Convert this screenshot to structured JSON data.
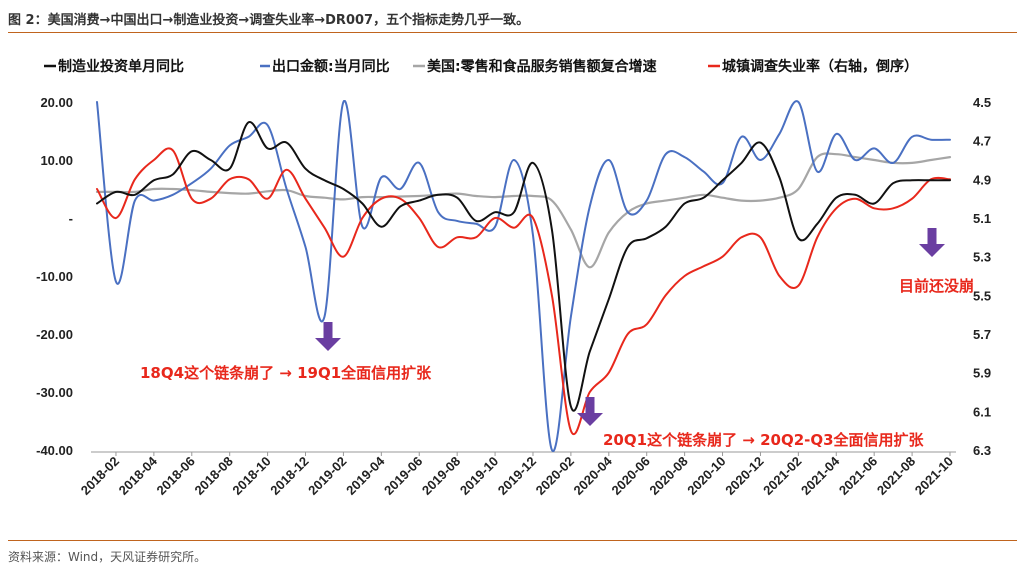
{
  "figure": {
    "title": "图 2：美国消费→中国出口→制造业投资→调查失业率→DR007，五个指标走势几乎一致。",
    "source": "资料来源：Wind，天风证券研究所。"
  },
  "colors": {
    "manufacturing": "#111111",
    "exports": "#4a70c2",
    "us_retail": "#a6a6a6",
    "unemployment": "#e8281c",
    "arrow": "#6a3ea1"
  },
  "chart_data": {
    "type": "line",
    "x": [
      "2018-01",
      "2018-02",
      "2018-03",
      "2018-04",
      "2018-05",
      "2018-06",
      "2018-07",
      "2018-08",
      "2018-09",
      "2018-10",
      "2018-11",
      "2018-12",
      "2019-01",
      "2019-02",
      "2019-03",
      "2019-04",
      "2019-05",
      "2019-06",
      "2019-07",
      "2019-08",
      "2019-09",
      "2019-10",
      "2019-11",
      "2019-12",
      "2020-01",
      "2020-02",
      "2020-03",
      "2020-04",
      "2020-05",
      "2020-06",
      "2020-07",
      "2020-08",
      "2020-09",
      "2020-10",
      "2020-11",
      "2020-12",
      "2021-01",
      "2021-02",
      "2021-03",
      "2021-04",
      "2021-05",
      "2021-06",
      "2021-07",
      "2021-08",
      "2021-09",
      "2021-10"
    ],
    "x_tick_labels": [
      "2018-02",
      "2018-04",
      "2018-06",
      "2018-08",
      "2018-10",
      "2018-12",
      "2019-02",
      "2019-04",
      "2019-06",
      "2019-08",
      "2019-10",
      "2019-12",
      "2020-02",
      "2020-04",
      "2020-06",
      "2020-08",
      "2020-10",
      "2020-12",
      "2021-02",
      "2021-04",
      "2021-06",
      "2021-08",
      "2021-10"
    ],
    "y_left": {
      "ticks": [
        20,
        10,
        0,
        -10,
        -20,
        -30,
        -40
      ],
      "tick_labels": [
        "20.00",
        "10.00",
        "-",
        "-10.00",
        "-20.00",
        "-30.00",
        "-40.00"
      ],
      "range": [
        -40,
        20
      ]
    },
    "y_right": {
      "ticks": [
        4.5,
        4.7,
        4.9,
        5.1,
        5.3,
        5.5,
        5.7,
        5.9,
        6.1,
        6.3
      ],
      "tick_labels": [
        "4.5",
        "4.7",
        "4.9",
        "5.1",
        "5.3",
        "5.5",
        "5.7",
        "5.9",
        "6.1",
        "6.3"
      ],
      "range": [
        4.5,
        6.3
      ],
      "inverted": true
    },
    "series": [
      {
        "key": "manufacturing",
        "name": "制造业投资单月同比",
        "axis": "left",
        "style": "solid",
        "values": [
          2.5,
          4.5,
          4.0,
          6.5,
          7.5,
          11.5,
          10.0,
          8.5,
          16.5,
          12.0,
          13.0,
          8.5,
          6.5,
          5.0,
          2.5,
          -1.5,
          2.0,
          3.0,
          4.0,
          3.5,
          -0.5,
          1.0,
          1.0,
          9.5,
          -2.0,
          -32.5,
          -23.0,
          -14.0,
          -5.0,
          -3.5,
          -1.5,
          2.5,
          3.5,
          6.5,
          9.5,
          13.0,
          7.0,
          -3.5,
          -1.0,
          3.5,
          4.0,
          2.5,
          6.0,
          6.5,
          6.5,
          6.5
        ]
      },
      {
        "key": "exports",
        "name": "出口金额:当月同比",
        "axis": "left",
        "style": "solid",
        "values": [
          20.0,
          -11.0,
          3.0,
          3.0,
          4.0,
          6.0,
          8.5,
          12.5,
          14.0,
          16.0,
          5.0,
          -5.0,
          -17.0,
          20.0,
          -1.5,
          7.0,
          5.0,
          9.5,
          1.0,
          -0.5,
          -1.0,
          -1.5,
          10.0,
          -3.0,
          -40.0,
          -17.0,
          2.0,
          10.0,
          1.0,
          3.0,
          11.0,
          10.5,
          8.0,
          6.0,
          14.0,
          10.0,
          14.5,
          20.0,
          8.0,
          14.5,
          10.0,
          12.0,
          9.5,
          14.0,
          13.5,
          13.5
        ]
      },
      {
        "key": "us_retail",
        "name": "美国:零售和食品服务销售额复合增速",
        "axis": "left",
        "style": "gray",
        "values": [
          4.5,
          4.5,
          4.5,
          5.0,
          5.0,
          4.8,
          4.5,
          4.3,
          4.2,
          4.6,
          4.8,
          3.8,
          3.5,
          3.2,
          3.6,
          3.6,
          3.7,
          3.8,
          4.0,
          4.2,
          3.8,
          3.6,
          3.8,
          3.8,
          3.0,
          -2.0,
          -8.5,
          -2.5,
          1.0,
          2.5,
          3.0,
          3.5,
          4.0,
          3.5,
          3.0,
          3.0,
          3.5,
          5.0,
          10.5,
          11.0,
          10.5,
          10.0,
          9.5,
          9.5,
          10.0,
          10.5
        ]
      },
      {
        "key": "unemployment",
        "name": "城镇调查失业率（右轴，倒序）",
        "axis": "right",
        "style": "solid",
        "values": [
          4.95,
          5.1,
          4.9,
          4.8,
          4.75,
          5.0,
          5.0,
          4.9,
          4.9,
          5.0,
          4.85,
          5.0,
          5.15,
          5.3,
          5.1,
          5.0,
          5.0,
          5.1,
          5.25,
          5.2,
          5.2,
          5.1,
          5.15,
          5.1,
          5.5,
          6.2,
          6.0,
          5.9,
          5.7,
          5.65,
          5.5,
          5.4,
          5.35,
          5.3,
          5.2,
          5.2,
          5.4,
          5.45,
          5.2,
          5.05,
          5.0,
          5.05,
          5.05,
          5.0,
          4.9,
          4.9
        ]
      }
    ],
    "annotations": [
      {
        "text": "18Q4这个链条崩了 → 19Q1全面信用扩张"
      },
      {
        "text": "20Q1这个链条崩了 → 20Q2-Q3全面信用扩张"
      },
      {
        "text": "目前还没崩"
      }
    ]
  }
}
